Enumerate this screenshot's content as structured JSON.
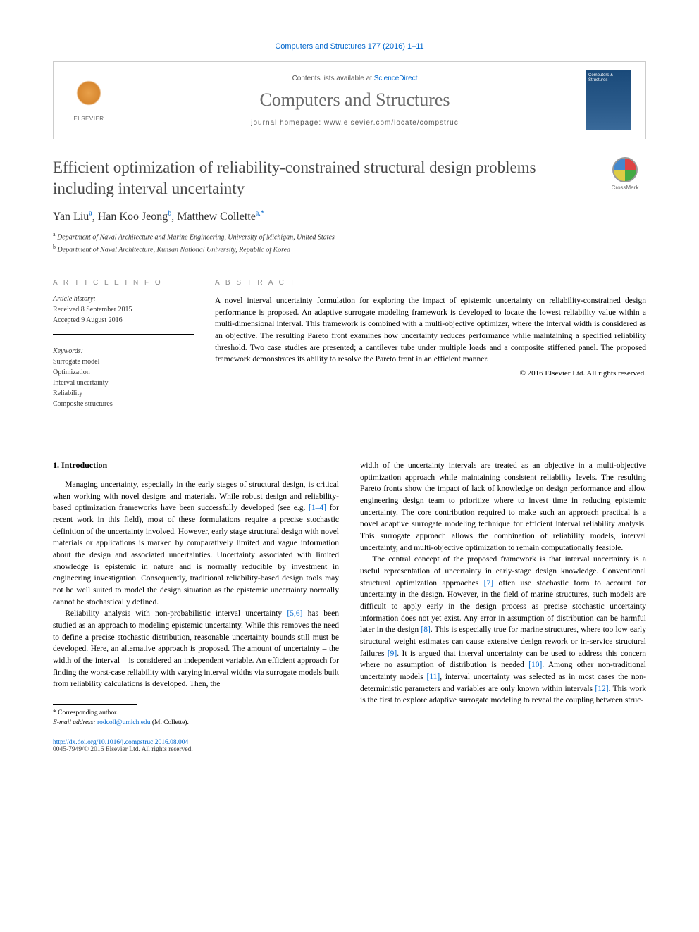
{
  "journal_ref": "Computers and Structures 177 (2016) 1–11",
  "header": {
    "contents_prefix": "Contents lists available at ",
    "contents_link": "ScienceDirect",
    "journal_name": "Computers and Structures",
    "homepage_prefix": "journal homepage: ",
    "homepage_url": "www.elsevier.com/locate/compstruc",
    "elsevier_label": "ELSEVIER",
    "cover_title": "Computers & Structures"
  },
  "crossmark_label": "CrossMark",
  "title": "Efficient optimization of reliability-constrained structural design problems including interval uncertainty",
  "authors_html": "Yan Liu<sup>a</sup>, Han Koo Jeong<sup>b</sup>, Matthew Collette<sup>a,*</sup>",
  "authors": [
    {
      "name": "Yan Liu",
      "aff": "a"
    },
    {
      "name": "Han Koo Jeong",
      "aff": "b"
    },
    {
      "name": "Matthew Collette",
      "aff": "a,*"
    }
  ],
  "affiliations": [
    {
      "mark": "a",
      "text": "Department of Naval Architecture and Marine Engineering, University of Michigan, United States"
    },
    {
      "mark": "b",
      "text": "Department of Naval Architecture, Kunsan National University, Republic of Korea"
    }
  ],
  "article_info": {
    "heading": "A R T I C L E   I N F O",
    "history_heading": "Article history:",
    "received": "Received 8 September 2015",
    "accepted": "Accepted 9 August 2016",
    "keywords_heading": "Keywords:",
    "keywords": [
      "Surrogate model",
      "Optimization",
      "Interval uncertainty",
      "Reliability",
      "Composite structures"
    ]
  },
  "abstract": {
    "heading": "A B S T R A C T",
    "text": "A novel interval uncertainty formulation for exploring the impact of epistemic uncertainty on reliability-constrained design performance is proposed. An adaptive surrogate modeling framework is developed to locate the lowest reliability value within a multi-dimensional interval. This framework is combined with a multi-objective optimizer, where the interval width is considered as an objective. The resulting Pareto front examines how uncertainty reduces performance while maintaining a specified reliability threshold. Two case studies are presented; a cantilever tube under multiple loads and a composite stiffened panel. The proposed framework demonstrates its ability to resolve the Pareto front in an efficient manner.",
    "copyright": "© 2016 Elsevier Ltd. All rights reserved."
  },
  "section1": {
    "heading": "1. Introduction",
    "p1": "Managing uncertainty, especially in the early stages of structural design, is critical when working with novel designs and materials. While robust design and reliability-based optimization frameworks have been successfully developed (see e.g. [1–4] for recent work in this field), most of these formulations require a precise stochastic definition of the uncertainty involved. However, early stage structural design with novel materials or applications is marked by comparatively limited and vague information about the design and associated uncertainties. Uncertainty associated with limited knowledge is epistemic in nature and is normally reducible by investment in engineering investigation. Consequently, traditional reliability-based design tools may not be well suited to model the design situation as the epistemic uncertainty normally cannot be stochastically defined.",
    "p2": "Reliability analysis with non-probabilistic interval uncertainty [5,6] has been studied as an approach to modeling epistemic uncertainty. While this removes the need to define a precise stochastic distribution, reasonable uncertainty bounds still must be developed. Here, an alternative approach is proposed. The amount of uncertainty – the width of the interval – is considered an independent variable. An efficient approach for finding the worst-case reliability with varying interval widths via surrogate models built from reliability calculations is developed. Then, the",
    "p3": "width of the uncertainty intervals are treated as an objective in a multi-objective optimization approach while maintaining consistent reliability levels. The resulting Pareto fronts show the impact of lack of knowledge on design performance and allow engineering design team to prioritize where to invest time in reducing epistemic uncertainty. The core contribution required to make such an approach practical is a novel adaptive surrogate modeling technique for efficient interval reliability analysis. This surrogate approach allows the combination of reliability models, interval uncertainty, and multi-objective optimization to remain computationally feasible.",
    "p4": "The central concept of the proposed framework is that interval uncertainty is a useful representation of uncertainty in early-stage design knowledge. Conventional structural optimization approaches [7] often use stochastic form to account for uncertainty in the design. However, in the field of marine structures, such models are difficult to apply early in the design process as precise stochastic uncertainty information does not yet exist. Any error in assumption of distribution can be harmful later in the design [8]. This is especially true for marine structures, where too low early structural weight estimates can cause extensive design rework or in-service structural failures [9]. It is argued that interval uncertainty can be used to address this concern where no assumption of distribution is needed [10]. Among other non-traditional uncertainty models [11], interval uncertainty was selected as in most cases the non-deterministic parameters and variables are only known within intervals [12]. This work is the first to explore adaptive surrogate modeling to reveal the coupling between struc-"
  },
  "footnote": {
    "corresponding": "* Corresponding author.",
    "email_label": "E-mail address:",
    "email": "rodcoll@umich.edu",
    "email_author": "(M. Collette)."
  },
  "footer": {
    "doi": "http://dx.doi.org/10.1016/j.compstruc.2016.08.004",
    "issn": "0045-7949/© 2016 Elsevier Ltd. All rights reserved."
  },
  "citations": {
    "c1_4": "[1–4]",
    "c5_6": "[5,6]",
    "c7": "[7]",
    "c8": "[8]",
    "c9": "[9]",
    "c10": "[10]",
    "c11": "[11]",
    "c12": "[12]"
  },
  "colors": {
    "link": "#0066cc",
    "title_gray": "#4a4a4a",
    "journal_gray": "#6a6a6a",
    "text": "#000000",
    "border": "#cccccc"
  }
}
